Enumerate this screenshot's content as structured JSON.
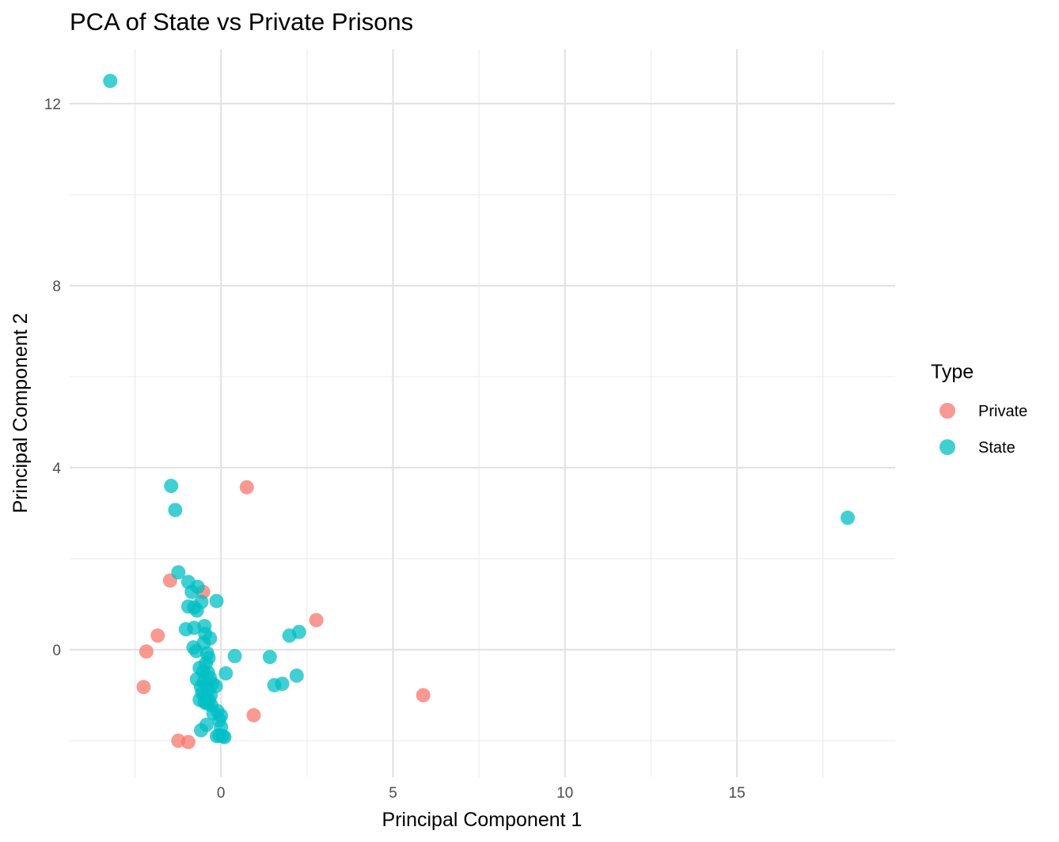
{
  "chart_data": {
    "type": "scatter",
    "title": "PCA of State vs Private Prisons",
    "xlabel": "Principal Component 1",
    "ylabel": "Principal Component 2",
    "xlim": [
      -4.4,
      19.6
    ],
    "ylim": [
      -2.8,
      13.2
    ],
    "x_ticks": [
      0,
      5,
      10,
      15
    ],
    "y_ticks": [
      0,
      4,
      8,
      12
    ],
    "grid": true,
    "legend": {
      "title": "Type",
      "position": "right"
    },
    "series": [
      {
        "name": "Private",
        "color": "#F8766D",
        "points": [
          [
            0.75,
            3.57
          ],
          [
            -1.48,
            1.52
          ],
          [
            -0.52,
            1.27
          ],
          [
            2.77,
            0.65
          ],
          [
            -1.84,
            0.31
          ],
          [
            -2.17,
            -0.04
          ],
          [
            -2.25,
            -0.82
          ],
          [
            0.95,
            -1.44
          ],
          [
            5.88,
            -1.0
          ],
          [
            -1.24,
            -2.0
          ],
          [
            -0.95,
            -2.03
          ]
        ]
      },
      {
        "name": "State",
        "color": "#00BFC4",
        "points": [
          [
            -3.22,
            12.5
          ],
          [
            18.22,
            2.9
          ],
          [
            -1.45,
            3.6
          ],
          [
            -1.33,
            3.07
          ],
          [
            -1.24,
            1.7
          ],
          [
            -0.95,
            1.49
          ],
          [
            -0.68,
            1.38
          ],
          [
            -0.85,
            1.27
          ],
          [
            -0.57,
            1.05
          ],
          [
            -0.13,
            1.07
          ],
          [
            -0.95,
            0.95
          ],
          [
            -0.78,
            0.93
          ],
          [
            -0.7,
            0.86
          ],
          [
            -1.02,
            0.45
          ],
          [
            -0.78,
            0.48
          ],
          [
            -0.48,
            0.52
          ],
          [
            -0.46,
            0.35
          ],
          [
            -0.32,
            0.25
          ],
          [
            -0.5,
            0.15
          ],
          [
            2.27,
            0.39
          ],
          [
            1.99,
            0.31
          ],
          [
            -0.8,
            0.05
          ],
          [
            -0.72,
            -0.03
          ],
          [
            -0.4,
            -0.08
          ],
          [
            -0.36,
            -0.18
          ],
          [
            0.4,
            -0.14
          ],
          [
            1.42,
            -0.16
          ],
          [
            -0.44,
            -0.3
          ],
          [
            -0.62,
            -0.4
          ],
          [
            -0.52,
            -0.48
          ],
          [
            -0.38,
            -0.5
          ],
          [
            0.14,
            -0.52
          ],
          [
            -0.32,
            -0.62
          ],
          [
            -0.7,
            -0.65
          ],
          [
            -0.5,
            -0.7
          ],
          [
            -0.42,
            -0.76
          ],
          [
            -0.58,
            -0.82
          ],
          [
            -0.25,
            -0.75
          ],
          [
            -0.15,
            -0.8
          ],
          [
            2.2,
            -0.57
          ],
          [
            1.55,
            -0.78
          ],
          [
            1.78,
            -0.75
          ],
          [
            -0.38,
            -0.9
          ],
          [
            -0.55,
            -0.95
          ],
          [
            -0.45,
            -1.02
          ],
          [
            -0.3,
            -1.0
          ],
          [
            -0.62,
            -1.1
          ],
          [
            -0.48,
            -1.15
          ],
          [
            -0.35,
            -1.12
          ],
          [
            -0.42,
            -1.18
          ],
          [
            -0.28,
            -1.22
          ],
          [
            -0.1,
            -1.35
          ],
          [
            -0.22,
            -1.4
          ],
          [
            0.0,
            -1.45
          ],
          [
            -0.05,
            -1.55
          ],
          [
            -0.42,
            -1.65
          ],
          [
            -0.58,
            -1.77
          ],
          [
            0.0,
            -1.7
          ],
          [
            -0.05,
            -1.88
          ],
          [
            0.05,
            -1.9
          ],
          [
            0.1,
            -1.92
          ],
          [
            -0.12,
            -1.9
          ]
        ]
      }
    ]
  }
}
